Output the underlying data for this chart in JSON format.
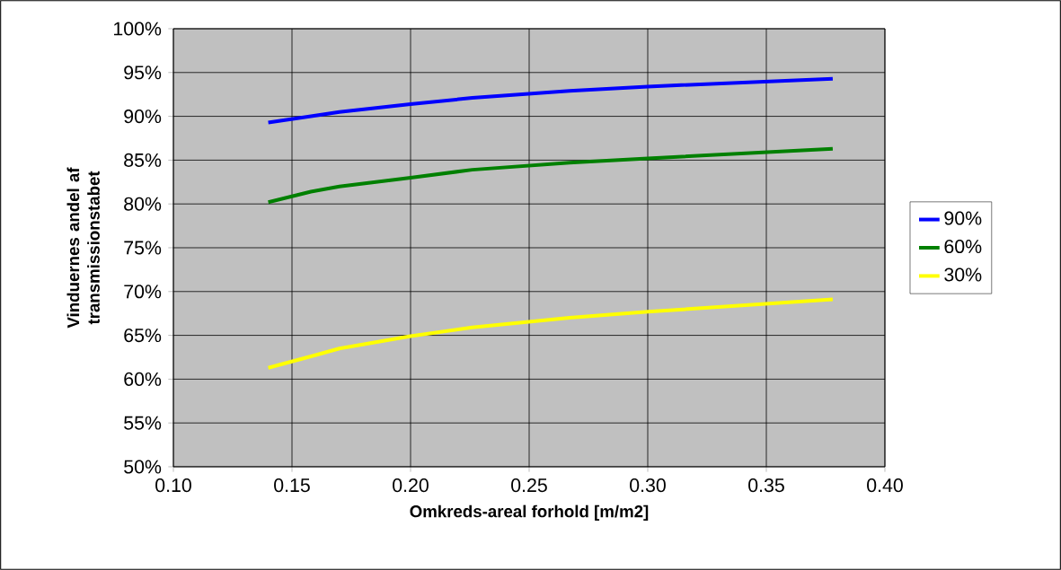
{
  "chart_data": {
    "type": "line",
    "xlabel": "Omkreds-areal forhold [m/m2]",
    "ylabel": "Vinduernes andel af transmissionstabet",
    "x": [
      0.14,
      0.158,
      0.17,
      0.2,
      0.226,
      0.267,
      0.3,
      0.378
    ],
    "series": [
      {
        "name": "90%",
        "color": "#0000ff",
        "values": [
          89.3,
          90.0,
          90.5,
          91.4,
          92.1,
          92.9,
          93.4,
          94.3
        ]
      },
      {
        "name": "60%",
        "color": "#008000",
        "values": [
          80.2,
          81.4,
          82.0,
          83.0,
          83.9,
          84.7,
          85.2,
          86.3
        ]
      },
      {
        "name": "30%",
        "color": "#ffff00",
        "values": [
          61.3,
          62.6,
          63.5,
          64.9,
          65.9,
          67.0,
          67.7,
          69.1
        ]
      }
    ],
    "xlim": [
      0.1,
      0.4
    ],
    "xticks": [
      {
        "value": 0.1,
        "label": "0.10"
      },
      {
        "value": 0.15,
        "label": "0.15"
      },
      {
        "value": 0.2,
        "label": "0.20"
      },
      {
        "value": 0.25,
        "label": "0.25"
      },
      {
        "value": 0.3,
        "label": "0.30"
      },
      {
        "value": 0.35,
        "label": "0.35"
      },
      {
        "value": 0.4,
        "label": "0.40"
      }
    ],
    "ylim": [
      50,
      100
    ],
    "yticks": [
      {
        "value": 50,
        "label": "50%"
      },
      {
        "value": 55,
        "label": "55%"
      },
      {
        "value": 60,
        "label": "60%"
      },
      {
        "value": 65,
        "label": "65%"
      },
      {
        "value": 70,
        "label": "70%"
      },
      {
        "value": 75,
        "label": "75%"
      },
      {
        "value": 80,
        "label": "80%"
      },
      {
        "value": 85,
        "label": "85%"
      },
      {
        "value": 90,
        "label": "90%"
      },
      {
        "value": 95,
        "label": "95%"
      },
      {
        "value": 100,
        "label": "100%"
      }
    ],
    "grid": true,
    "legend": "right",
    "line_style": "solid",
    "marker": "none"
  }
}
